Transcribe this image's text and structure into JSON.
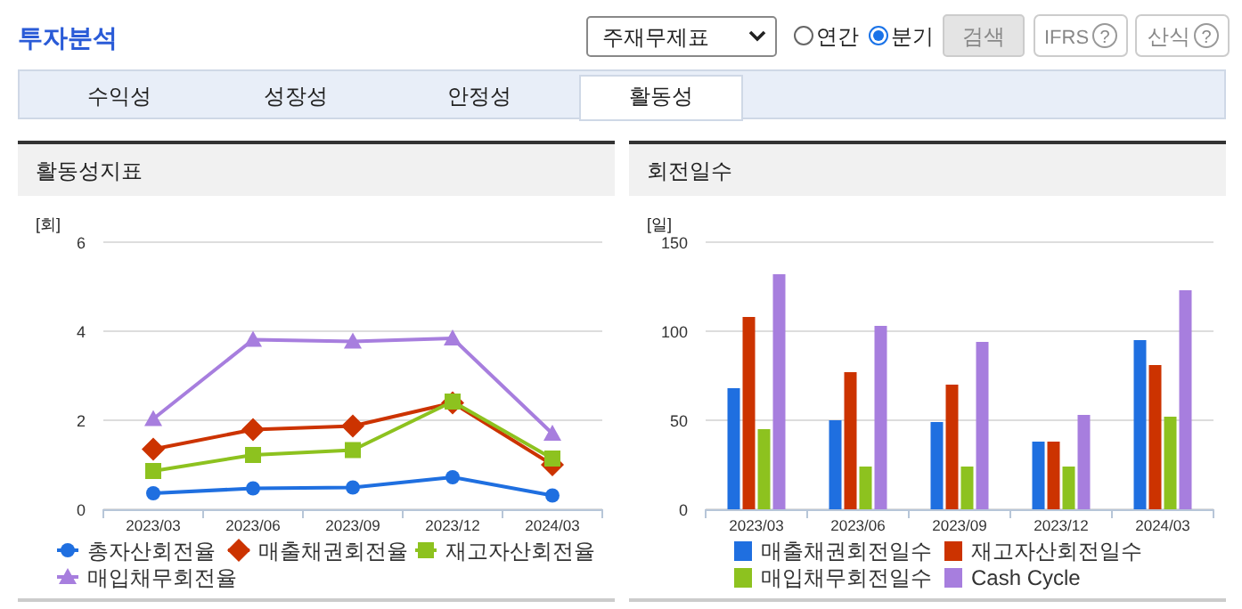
{
  "chart_data": [
    {
      "type": "other",
      "title": "투자분석",
      "annotations": [
        "주재무제표",
        "연간",
        "분기",
        "검색",
        "IFRS",
        "?",
        "산식",
        "?",
        "수익성",
        "성장성",
        "안정성",
        "활동성"
      ]
    },
    {
      "type": "line",
      "title": "활동성지표",
      "ylabel": "[회]",
      "categories": [
        "2023/03",
        "2023/06",
        "2023/09",
        "2023/12",
        "2024/03"
      ],
      "ylim": [
        0,
        6
      ],
      "yticks": [
        0,
        2,
        4,
        6
      ],
      "grid": "y",
      "legend": "bottom",
      "line_style": "solid",
      "series": [
        {
          "name": "총자산회전율",
          "color": "#1f6fe0",
          "marker": "circle",
          "values": [
            0.36,
            0.47,
            0.49,
            0.72,
            0.31
          ]
        },
        {
          "name": "매출채권회전율",
          "color": "#cc3300",
          "marker": "diamond",
          "values": [
            1.35,
            1.79,
            1.87,
            2.39,
            1.0
          ]
        },
        {
          "name": "재고자산회전율",
          "color": "#8dc21f",
          "marker": "square",
          "values": [
            0.86,
            1.22,
            1.33,
            2.42,
            1.14
          ]
        },
        {
          "name": "매입채무회전율",
          "color": "#a77ede",
          "marker": "triangle",
          "values": [
            2.03,
            3.81,
            3.77,
            3.84,
            1.7
          ]
        }
      ]
    },
    {
      "type": "bar",
      "title": "회전일수",
      "ylabel": "[일]",
      "categories": [
        "2023/03",
        "2023/06",
        "2023/09",
        "2023/12",
        "2024/03"
      ],
      "ylim": [
        0,
        150
      ],
      "yticks": [
        0,
        50,
        100,
        150
      ],
      "grid": "y",
      "legend": "bottom",
      "series": [
        {
          "name": "매출채권회전일수",
          "color": "#1f6fe0",
          "values": [
            68,
            50,
            49,
            38,
            95
          ]
        },
        {
          "name": "재고자산회전일수",
          "color": "#cc3300",
          "values": [
            108,
            77,
            70,
            38,
            81
          ]
        },
        {
          "name": "매입채무회전일수",
          "color": "#8dc21f",
          "values": [
            45,
            24,
            24,
            24,
            52
          ]
        },
        {
          "name": "Cash Cycle",
          "color": "#a77ede",
          "values": [
            132,
            103,
            94,
            53,
            123
          ]
        }
      ]
    }
  ]
}
